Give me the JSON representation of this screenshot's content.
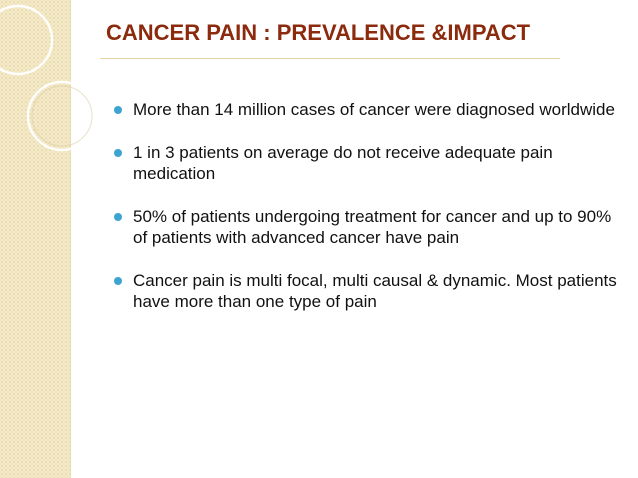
{
  "slide": {
    "title": "CANCER PAIN : PREVALENCE &IMPACT",
    "bullets": [
      {
        "text": "More than 14 million cases of cancer were diagnosed worldwide"
      },
      {
        "text": "1 in 3 patients on average do not receive adequate pain medication"
      },
      {
        "text": "50% of patients undergoing treatment for cancer and up to 90% of patients with advanced cancer have pain"
      },
      {
        "text": "Cancer pain is multi focal, multi causal & dynamic. Most patients have more than one type of pain"
      }
    ]
  },
  "colors": {
    "title": "#8b2a0d",
    "bullet_marker": "#3da3d2",
    "side_band": "#f5ebcb",
    "ring": "#ffffff"
  }
}
